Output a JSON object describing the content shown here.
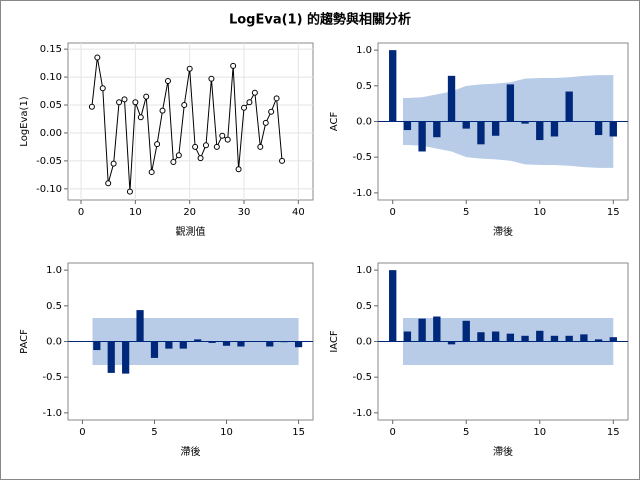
{
  "title": "LogEva(1) 的趨勢與相關分析",
  "chart_data": [
    {
      "type": "line",
      "x_label": "觀測值",
      "y_label": "LogEva(1)",
      "x": [
        2,
        3,
        4,
        5,
        6,
        7,
        8,
        9,
        10,
        11,
        12,
        13,
        14,
        15,
        16,
        17,
        18,
        19,
        20,
        21,
        22,
        23,
        24,
        25,
        26,
        27,
        28,
        29,
        30,
        31,
        32,
        33,
        34,
        35,
        36,
        37
      ],
      "values": [
        0.047,
        0.135,
        0.08,
        -0.09,
        -0.055,
        0.055,
        0.06,
        -0.105,
        0.055,
        0.028,
        0.065,
        -0.07,
        -0.02,
        0.04,
        0.093,
        -0.052,
        -0.04,
        0.05,
        0.115,
        -0.025,
        -0.045,
        -0.022,
        0.097,
        -0.025,
        -0.005,
        -0.012,
        0.12,
        -0.065,
        0.045,
        0.055,
        0.072,
        -0.025,
        0.018,
        0.038,
        0.062,
        -0.05
      ],
      "color": "#000000",
      "grid": true,
      "xlim": [
        -2.4,
        42.7
      ],
      "xticks": [
        0,
        10,
        20,
        30,
        40
      ],
      "ylim": [
        -0.12,
        0.161
      ],
      "yticks": [
        {
          "value": -0.1,
          "label": "-0.10"
        },
        {
          "value": -0.05,
          "label": "-0.05"
        },
        {
          "value": 0,
          "label": "0.00"
        },
        {
          "value": 0.05,
          "label": "0.05"
        },
        {
          "value": 0.1,
          "label": "0.10"
        },
        {
          "value": 0.15,
          "label": "0.15"
        }
      ]
    },
    {
      "type": "bar",
      "x_label": "滯後",
      "y_label": "ACF",
      "x": [
        0,
        1,
        2,
        3,
        4,
        5,
        6,
        7,
        8,
        9,
        10,
        11,
        12,
        13,
        14,
        15
      ],
      "values": [
        1.0,
        -0.12,
        -0.42,
        -0.22,
        0.64,
        -0.1,
        -0.32,
        -0.2,
        0.52,
        -0.03,
        -0.26,
        -0.21,
        0.42,
        0,
        -0.19,
        -0.21
      ],
      "confidence_limit": [
        null,
        0.33,
        0.34,
        0.38,
        0.42,
        0.5,
        0.52,
        0.53,
        0.55,
        0.6,
        0.61,
        0.61,
        0.62,
        0.64,
        0.65,
        0.65
      ],
      "color": "#00287a",
      "band_color": "#b8cce8",
      "xlim": [
        -1,
        16
      ],
      "xticks": [
        0,
        5,
        10,
        15
      ],
      "ylim": [
        -1.1,
        1.1
      ],
      "yticks": [
        {
          "value": -1,
          "label": "-1.0"
        },
        -0.5,
        {
          "value": 0,
          "label": "0.0"
        },
        0.5,
        {
          "value": 1,
          "label": "1.0"
        }
      ]
    },
    {
      "type": "bar",
      "x_label": "滯後",
      "y_label": "PACF",
      "x": [
        1,
        2,
        3,
        4,
        5,
        6,
        7,
        8,
        9,
        10,
        11,
        12,
        13,
        14,
        15
      ],
      "values": [
        -0.12,
        -0.44,
        -0.45,
        0.44,
        -0.23,
        -0.1,
        -0.1,
        0.03,
        -0.02,
        -0.06,
        -0.07,
        0,
        -0.07,
        -0.01,
        -0.08
      ],
      "confidence_limit": [
        0.33,
        0.33,
        0.33,
        0.33,
        0.33,
        0.33,
        0.33,
        0.33,
        0.33,
        0.33,
        0.33,
        0.33,
        0.33,
        0.33,
        0.33
      ],
      "color": "#00287a",
      "band_color": "#b8cce8",
      "xlim": [
        -1,
        16
      ],
      "xticks": [
        0,
        5,
        10,
        15
      ],
      "ylim": [
        -1.1,
        1.1
      ],
      "yticks": [
        {
          "value": -1,
          "label": "-1.0"
        },
        -0.5,
        {
          "value": 0,
          "label": "0.0"
        },
        0.5,
        {
          "value": 1,
          "label": "1.0"
        }
      ]
    },
    {
      "type": "bar",
      "x_label": "滯後",
      "y_label": "IACF",
      "x": [
        0,
        1,
        2,
        3,
        4,
        5,
        6,
        7,
        8,
        9,
        10,
        11,
        12,
        13,
        14,
        15
      ],
      "values": [
        1.0,
        0.14,
        0.32,
        0.35,
        -0.04,
        0.29,
        0.13,
        0.14,
        0.11,
        0.08,
        0.15,
        0.08,
        0.08,
        0.1,
        0.03,
        0.06
      ],
      "confidence_limit": [
        null,
        0.33,
        0.33,
        0.33,
        0.33,
        0.33,
        0.33,
        0.33,
        0.33,
        0.33,
        0.33,
        0.33,
        0.33,
        0.33,
        0.33,
        0.33
      ],
      "color": "#00287a",
      "band_color": "#b8cce8",
      "xlim": [
        -1,
        16
      ],
      "xticks": [
        0,
        5,
        10,
        15
      ],
      "ylim": [
        -1.1,
        1.1
      ],
      "yticks": [
        {
          "value": -1,
          "label": "-1.0"
        },
        -0.5,
        {
          "value": 0,
          "label": "0.0"
        },
        0.5,
        {
          "value": 1,
          "label": "1.0"
        }
      ]
    }
  ]
}
